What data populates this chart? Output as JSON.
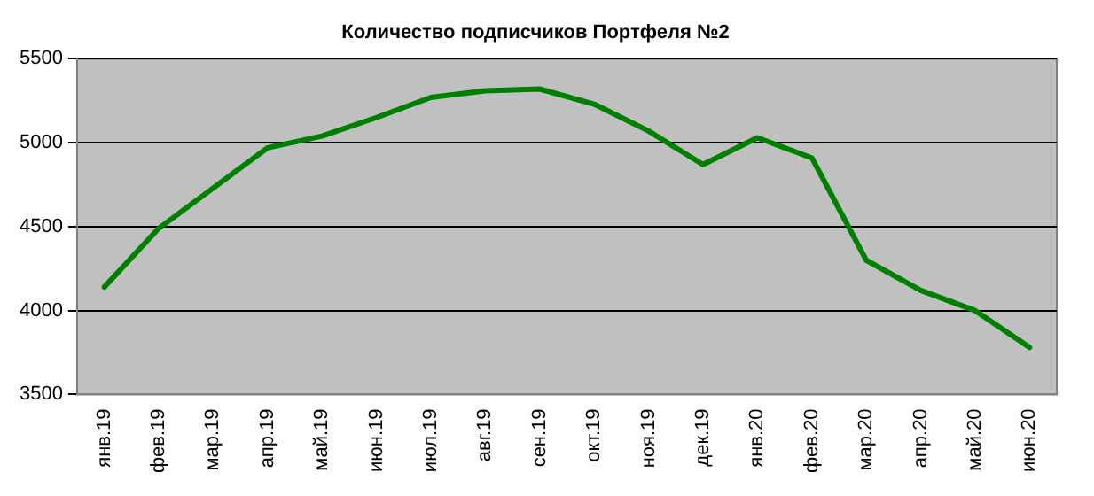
{
  "chart_data": {
    "type": "line",
    "title": "Количество подписчиков Портфеля №2",
    "categories": [
      "янв.19",
      "фев.19",
      "мар.19",
      "апр.19",
      "май.19",
      "июн.19",
      "июл.19",
      "авг.19",
      "сен.19",
      "окт.19",
      "ноя.19",
      "дек.19",
      "янв.20",
      "фев.20",
      "мар.20",
      "апр.20",
      "май.20",
      "июн.20"
    ],
    "series": [
      {
        "color": "#008000",
        "values": [
          4140,
          4490,
          4730,
          4970,
          5040,
          5150,
          5270,
          5310,
          5320,
          5230,
          5070,
          4870,
          5030,
          4910,
          4300,
          4120,
          4000,
          3780
        ]
      }
    ],
    "ylim": [
      3500,
      5500
    ],
    "yticks": [
      3500,
      4000,
      4500,
      5000,
      5500
    ],
    "grid": "y",
    "legend": false,
    "marker": "none",
    "line_style": "solid"
  }
}
